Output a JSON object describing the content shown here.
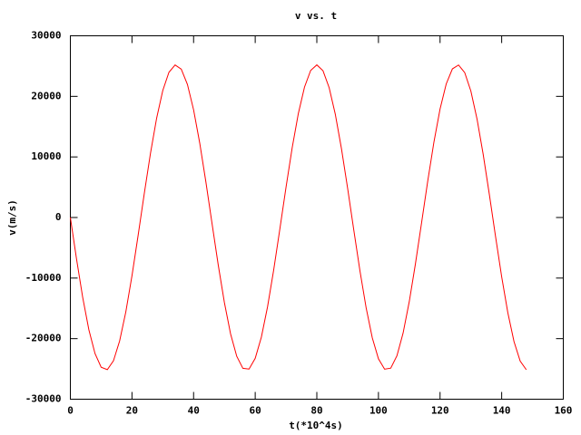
{
  "chart_data": {
    "type": "line",
    "title": "v vs. t",
    "x_label": "t(*10^4s)",
    "y_label": "v(m/s)",
    "x": [
      0,
      2,
      4,
      6,
      8,
      10,
      12,
      14,
      16,
      18,
      20,
      22,
      24,
      26,
      28,
      30,
      32,
      34,
      36,
      38,
      40,
      42,
      44,
      46,
      48,
      50,
      52,
      54,
      56,
      58,
      60,
      62,
      64,
      66,
      68,
      70,
      72,
      74,
      76,
      78,
      80,
      82,
      84,
      86,
      88,
      90,
      92,
      94,
      96,
      98,
      100,
      102,
      104,
      106,
      108,
      110,
      112,
      114,
      116,
      118,
      120,
      122,
      124,
      126,
      128,
      130,
      132,
      134,
      136,
      138,
      140,
      142,
      144,
      146,
      148
    ],
    "series": [
      {
        "name": "v",
        "color": "#ff0000",
        "values": [
          0,
          -6842,
          -13172,
          -18512,
          -22458,
          -24719,
          -25122,
          -23638,
          -20372,
          -15586,
          -9624,
          -2938,
          3969,
          10574,
          16388,
          20971,
          23978,
          25182,
          24494,
          21967,
          17779,
          12272,
          5836,
          -1041,
          -7837,
          -14044,
          -19202,
          -22909,
          -24900,
          -25019,
          -23255,
          -19747,
          -14755,
          -8654,
          -1903,
          4992,
          11511,
          17171,
          21531,
          24278,
          25200,
          24230,
          21438,
          17040,
          11353,
          4821,
          -2079,
          -8820,
          -14896,
          -19858,
          -23325,
          -25039,
          -24872,
          -22836,
          -19086,
          -13900,
          -7671,
          -864,
          6008,
          12426,
          17912,
          22055,
          24535,
          25175,
          23922,
          20876,
          16257,
          10415,
          3795,
          -3112,
          -9785,
          -15725,
          -20480,
          -23698,
          -25134
        ]
      }
    ],
    "xlim": [
      0,
      160
    ],
    "xticks": [
      0,
      20,
      40,
      60,
      80,
      100,
      120,
      140,
      160
    ],
    "ylim": [
      -30000,
      30000
    ],
    "yticks": [
      -30000,
      -20000,
      -10000,
      0,
      10000,
      20000,
      30000
    ]
  }
}
